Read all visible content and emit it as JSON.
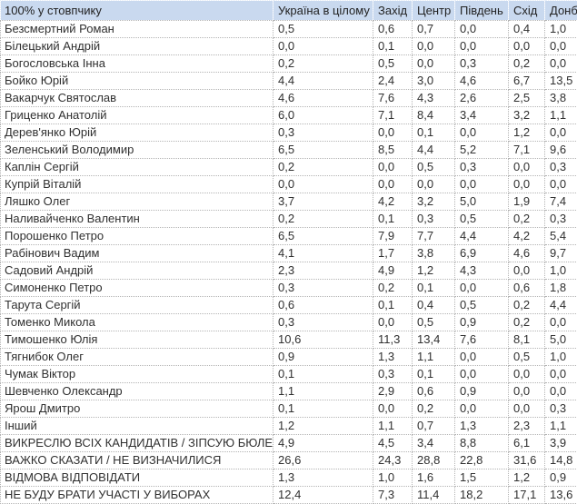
{
  "colors": {
    "header_bg": "#c9d9ef",
    "header_text": "#222222",
    "body_text": "#303030",
    "grid_border": "#b4b4b4"
  },
  "chart_data": {
    "type": "table",
    "title": "100% у стовпчику",
    "columns": [
      "Україна в цілому",
      "Захід",
      "Центр",
      "Південь",
      "Схід",
      "Донбас"
    ],
    "rows": [
      {
        "label": "Безсмертний Роман",
        "values": [
          "0,5",
          "0,6",
          "0,7",
          "0,0",
          "0,4",
          "1,0"
        ]
      },
      {
        "label": "Білецький Андрій",
        "values": [
          "0,0",
          "0,1",
          "0,0",
          "0,0",
          "0,0",
          "0,0"
        ]
      },
      {
        "label": "Богословська Інна",
        "values": [
          "0,2",
          "0,5",
          "0,0",
          "0,3",
          "0,2",
          "0,0"
        ]
      },
      {
        "label": "Бойко Юрій",
        "values": [
          "4,4",
          "2,4",
          "3,0",
          "4,6",
          "6,7",
          "13,5"
        ]
      },
      {
        "label": "Вакарчук Святослав",
        "values": [
          "4,6",
          "7,6",
          "4,3",
          "2,6",
          "2,5",
          "3,8"
        ]
      },
      {
        "label": "Гриценко Анатолій",
        "values": [
          "6,0",
          "7,1",
          "8,4",
          "3,4",
          "3,2",
          "1,1"
        ]
      },
      {
        "label": "Дерев'янко Юрій",
        "values": [
          "0,3",
          "0,0",
          "0,1",
          "0,0",
          "1,2",
          "0,0"
        ]
      },
      {
        "label": "Зеленський Володимир",
        "values": [
          "6,5",
          "8,5",
          "4,4",
          "5,2",
          "7,1",
          "9,6"
        ]
      },
      {
        "label": "Каплін Сергій",
        "values": [
          "0,2",
          "0,0",
          "0,5",
          "0,3",
          "0,0",
          "0,3"
        ]
      },
      {
        "label": "Купрій Віталій",
        "values": [
          "0,0",
          "0,0",
          "0,0",
          "0,0",
          "0,0",
          "0,0"
        ]
      },
      {
        "label": "Ляшко Олег",
        "values": [
          "3,7",
          "4,2",
          "3,2",
          "5,0",
          "1,9",
          "7,4"
        ]
      },
      {
        "label": "Наливайченко Валентин",
        "values": [
          "0,2",
          "0,1",
          "0,3",
          "0,5",
          "0,2",
          "0,3"
        ]
      },
      {
        "label": "Порошенко Петро",
        "values": [
          "6,5",
          "7,9",
          "7,7",
          "4,4",
          "4,2",
          "5,4"
        ]
      },
      {
        "label": "Рабінович Вадим",
        "values": [
          "4,1",
          "1,7",
          "3,8",
          "6,9",
          "4,6",
          "9,7"
        ]
      },
      {
        "label": "Садовий Андрій",
        "values": [
          "2,3",
          "4,9",
          "1,2",
          "4,3",
          "0,0",
          "1,0"
        ]
      },
      {
        "label": "Симоненко Петро",
        "values": [
          "0,3",
          "0,2",
          "0,1",
          "0,0",
          "0,6",
          "1,8"
        ]
      },
      {
        "label": "Тарута Сергій",
        "values": [
          "0,6",
          "0,1",
          "0,4",
          "0,5",
          "0,2",
          "4,4"
        ]
      },
      {
        "label": "Томенко Микола",
        "values": [
          "0,3",
          "0,0",
          "0,5",
          "0,9",
          "0,2",
          "0,0"
        ]
      },
      {
        "label": "Тимошенко Юлія",
        "values": [
          "10,6",
          "11,3",
          "13,4",
          "7,6",
          "8,1",
          "5,0"
        ]
      },
      {
        "label": "Тягнибок Олег",
        "values": [
          "0,9",
          "1,3",
          "1,1",
          "0,0",
          "0,5",
          "1,0"
        ]
      },
      {
        "label": "Чумак Віктор",
        "values": [
          "0,1",
          "0,3",
          "0,1",
          "0,0",
          "0,0",
          "0,0"
        ]
      },
      {
        "label": "Шевченко Олександр",
        "values": [
          "1,1",
          "2,9",
          "0,6",
          "0,9",
          "0,0",
          "0,0"
        ]
      },
      {
        "label": "Ярош Дмитро",
        "values": [
          "0,1",
          "0,0",
          "0,2",
          "0,0",
          "0,0",
          "0,3"
        ]
      },
      {
        "label": "Інший",
        "values": [
          "1,2",
          "1,1",
          "0,7",
          "1,3",
          "2,3",
          "1,1"
        ]
      },
      {
        "label": "ВИКРЕСЛЮ ВСІХ КАНДИДАТІВ / ЗІПСУЮ БЮЛЕТЕНЬ",
        "values": [
          "4,9",
          "4,5",
          "3,4",
          "8,8",
          "6,1",
          "3,9"
        ]
      },
      {
        "label": "ВАЖКО СКАЗАТИ / НЕ ВИЗНАЧИЛИСЯ",
        "values": [
          "26,6",
          "24,3",
          "28,8",
          "22,8",
          "31,6",
          "14,8"
        ]
      },
      {
        "label": "ВІДМОВА ВІДПОВІДАТИ",
        "values": [
          "1,3",
          "1,0",
          "1,6",
          "1,5",
          "1,2",
          "0,9"
        ]
      },
      {
        "label": "НЕ БУДУ БРАТИ УЧАСТІ У ВИБОРАХ",
        "values": [
          "12,4",
          "7,3",
          "11,4",
          "18,2",
          "17,1",
          "13,6"
        ]
      }
    ]
  }
}
